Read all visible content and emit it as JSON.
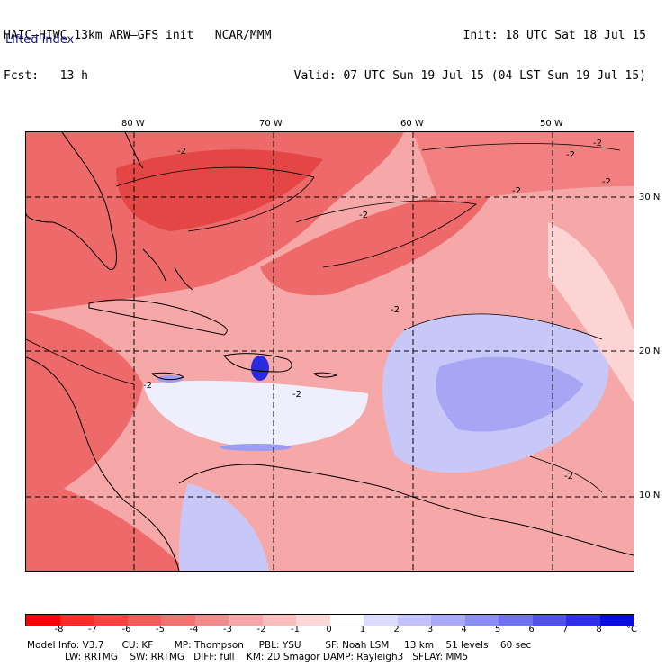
{
  "header": {
    "title_left": "HAIC–HIWC 13km ARW–GFS init   NCAR/MMM",
    "fcst": "Fcst:   13 h",
    "init": "Init: 18 UTC Sat 18 Jul 15",
    "valid": "Valid: 07 UTC Sun 19 Jul 15 (04 LST Sun 19 Jul 15)",
    "field": "Lifted index"
  },
  "map": {
    "lon_labels": [
      "80 W",
      "70 W",
      "60 W",
      "50 W"
    ],
    "lat_labels": [
      "30 N",
      "20 N",
      "10 N"
    ],
    "contour_label": "-2",
    "colors": {
      "deep_red": "#e23a3a",
      "red": "#ee6a6a",
      "pink": "#f6a8a8",
      "light_pink": "#fcd4d4",
      "near_white": "#eeeefc",
      "light_blue": "#c8c8f8",
      "blue": "#9c9cf2",
      "deep_blue": "#2a2ae0",
      "land_line": "#000000"
    }
  },
  "colorbar": {
    "ticks": [
      "-8",
      "-7",
      "-6",
      "-5",
      "-4",
      "-3",
      "-2",
      "-1",
      "0",
      "1",
      "2",
      "3",
      "4",
      "5",
      "6",
      "7",
      "8"
    ],
    "unit": "°C",
    "colors": [
      "#ff0000",
      "#ff2a2a",
      "#fc4040",
      "#f75a5a",
      "#f27272",
      "#f28c8c",
      "#f5a6a6",
      "#f8bebe",
      "#fcd8d8",
      "#ffffff",
      "#dcdcfc",
      "#c2c2fa",
      "#a8a8f7",
      "#8c8cf5",
      "#7070f2",
      "#5050ef",
      "#2e2eec",
      "#0c0ce6"
    ]
  },
  "footer": {
    "line1": "Model Info: V3.7      CU: KF       MP: Thompson     PBL: YSU        SF: Noah LSM     13 km    51 levels    60 sec",
    "line2": "LW: RRTMG    SW: RRTMG   DIFF: full    KM: 2D Smagor DAMP: Rayleigh3   SFLAY: MM5"
  }
}
